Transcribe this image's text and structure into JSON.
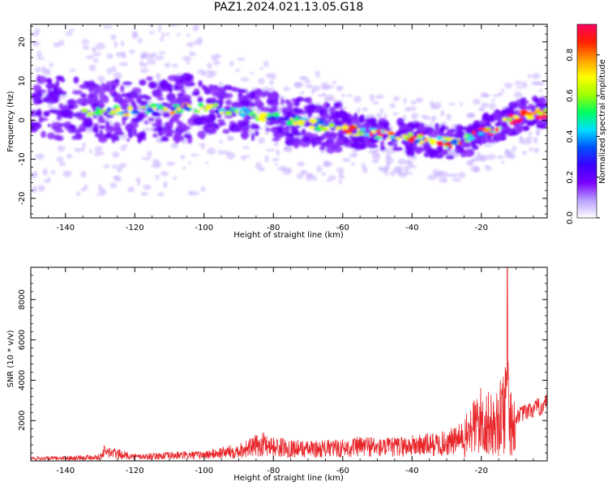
{
  "figure": {
    "title": "PAZ1.2024.021.13.05.G18"
  },
  "chart_data": [
    {
      "type": "heatmap",
      "xlabel": "Height of straight line (km)",
      "ylabel": "Frequency (Hz)",
      "xlim": [
        -150,
        -1
      ],
      "ylim": [
        -25,
        24.5
      ],
      "xticks": [
        -140,
        -120,
        -100,
        -80,
        -60,
        -40,
        -20
      ],
      "yticks": [
        -20,
        -10,
        0,
        10,
        20
      ],
      "colorbar": {
        "label": "Normalized spectral amplitude",
        "range": [
          0.0,
          0.95
        ],
        "ticks": [
          "0.0",
          "0.2",
          "0.4",
          "0.6",
          "0.8"
        ],
        "colormap": "gist_rainbow_r",
        "colors": [
          "#ffffff",
          "#b8a0ff",
          "#7a00ff",
          "#3a00ff",
          "#0050ff",
          "#00dfff",
          "#00ff60",
          "#a0ff00",
          "#ffff00",
          "#ff9a00",
          "#ff2000",
          "#ff0060"
        ]
      },
      "ridge": {
        "description_points_x": [
          -148,
          -135,
          -120,
          -105,
          -95,
          -85,
          -75,
          -65,
          -55,
          -45,
          -35,
          -28,
          -22,
          -17,
          -12,
          -7,
          -3
        ],
        "description_points_freq": [
          4,
          2,
          2.5,
          3,
          3,
          1.5,
          0,
          -1.5,
          -3,
          -4,
          -5,
          -6,
          -4,
          -2.5,
          0,
          1.5,
          1.5
        ]
      }
    },
    {
      "type": "line",
      "xlabel": "Height of straight line (km)",
      "ylabel": "SNR (10 * v/v)",
      "xlim": [
        -150,
        -1
      ],
      "ylim": [
        0,
        9600
      ],
      "xticks": [
        -140,
        -120,
        -100,
        -80,
        -60,
        -40,
        -20
      ],
      "yticks": [
        2000,
        4000,
        6000,
        8000
      ],
      "series": [
        {
          "color": "#e8262a",
          "envelope_x": [
            -150,
            -140,
            -130,
            -129,
            -120,
            -110,
            -100,
            -90,
            -82,
            -80,
            -70,
            -60,
            -52,
            -50,
            -40,
            -30,
            -25,
            -23,
            -20,
            -17,
            -15,
            -13,
            -12.5,
            -12,
            -10,
            -5,
            -1
          ],
          "envelope_y": [
            200,
            250,
            350,
            800,
            350,
            450,
            500,
            900,
            1500,
            1200,
            1000,
            1100,
            1300,
            1100,
            1300,
            1500,
            2000,
            3000,
            3800,
            3300,
            3500,
            5500,
            9600,
            4500,
            2600,
            3000,
            3300
          ]
        }
      ]
    }
  ]
}
